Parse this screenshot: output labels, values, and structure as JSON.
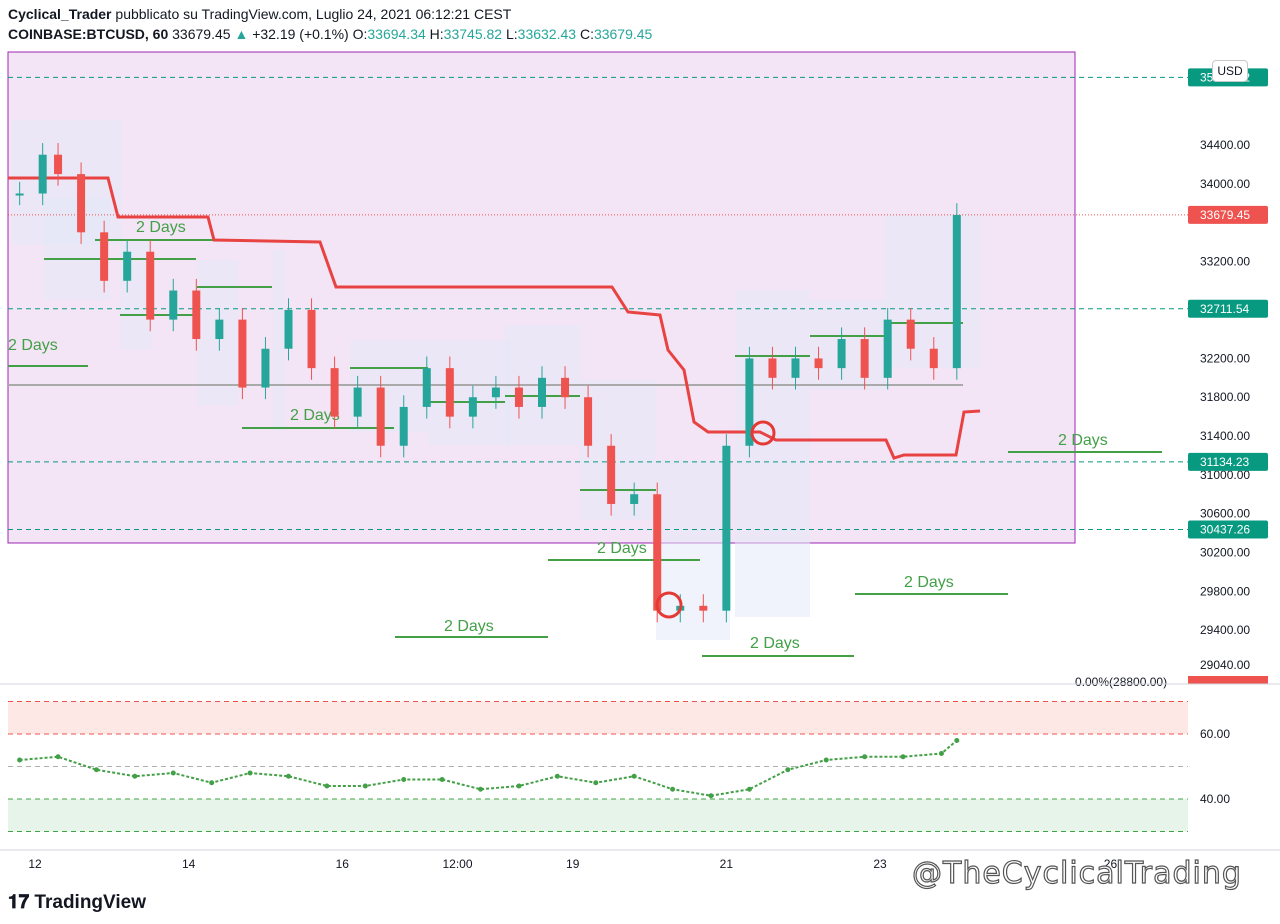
{
  "header": {
    "author": "Cyclical_Trader",
    "published": "pubblicato su TradingView.com, Luglio 24, 2021 06:12:21 CEST",
    "symbol": "COINBASE:BTCUSD, 60",
    "last": "33679.45",
    "change_arrow": "▲",
    "change": "+32.19 (+0.1%)",
    "o_label": "O:",
    "o": "33694.34",
    "h_label": "H:",
    "h": "33745.82",
    "l_label": "L:",
    "l": "33632.43",
    "c_label": "C:",
    "c": "33679.45"
  },
  "currency_button": "USD",
  "footer": {
    "logo": "TradingView",
    "watermark": "@TheCyclicalTrading"
  },
  "colors": {
    "up": "#26a69a",
    "down": "#ef5350",
    "red_line": "#e84342",
    "green_level": "#43a047",
    "zone_fill": "#f3e5f5",
    "zone_border": "#9c27b0",
    "rsi": "#43a047"
  },
  "chart_data": [
    {
      "type": "line",
      "title": "",
      "currency": "USD",
      "y_ticks": [
        "34400.00",
        "34000.00",
        "33200.00",
        "32200.00",
        "31800.00",
        "31400.00",
        "31000.00",
        "30600.00",
        "30200.00",
        "29800.00",
        "29400.00",
        "29040.00"
      ],
      "x_ticks": [
        "12",
        "14",
        "16",
        "12:00",
        "19",
        "21",
        "23",
        "26"
      ],
      "ylim": [
        29040,
        34750
      ],
      "price_labels": [
        {
          "value": 35097.12,
          "text": "35097.12",
          "color": "#089981"
        },
        {
          "value": 33679.45,
          "text": "33679.45",
          "color": "#ef5350"
        },
        {
          "value": 32711.54,
          "text": "32711.54",
          "color": "#089981"
        },
        {
          "value": 31134.23,
          "text": "31134.23",
          "color": "#089981"
        },
        {
          "value": 30437.26,
          "text": "30437.26",
          "color": "#089981"
        }
      ],
      "fib_label": "0.00%(28800.00)",
      "level_label": "2 Days",
      "close_series_x_day": [
        11.8,
        12.1,
        12.3,
        12.6,
        12.9,
        13.2,
        13.5,
        13.8,
        14.1,
        14.4,
        14.7,
        15.0,
        15.3,
        15.6,
        15.9,
        16.2,
        16.5,
        16.8,
        17.1,
        17.4,
        17.7,
        18.0,
        18.3,
        18.6,
        18.9,
        19.2,
        19.5,
        19.8,
        20.1,
        20.4,
        20.7,
        21.0,
        21.3,
        21.6,
        21.9,
        22.2,
        22.5,
        22.8,
        23.1,
        23.4,
        23.7,
        24.0
      ],
      "close_series_y": [
        33900,
        34300,
        34100,
        33500,
        33000,
        33300,
        32600,
        32900,
        32400,
        32600,
        31900,
        32300,
        32700,
        32100,
        31600,
        31900,
        31300,
        31700,
        32100,
        31600,
        31800,
        31900,
        31700,
        32000,
        31800,
        31300,
        30700,
        30800,
        29600,
        29650,
        29600,
        31300,
        32200,
        32000,
        32200,
        32100,
        32400,
        32000,
        32600,
        32300,
        32100,
        33679
      ]
    },
    {
      "type": "line",
      "title": "",
      "y_ticks": [
        "60.00",
        "40.00"
      ],
      "ylim": [
        28,
        72
      ],
      "bands": {
        "overbought": 70,
        "upper": 60,
        "lower": 40,
        "oversold": 30
      },
      "rsi_x_day": [
        11.8,
        12.3,
        12.8,
        13.3,
        13.8,
        14.3,
        14.8,
        15.3,
        15.8,
        16.3,
        16.8,
        17.3,
        17.8,
        18.3,
        18.8,
        19.3,
        19.8,
        20.3,
        20.8,
        21.3,
        21.8,
        22.3,
        22.8,
        23.3,
        23.8,
        24.0
      ],
      "rsi_y": [
        52,
        53,
        49,
        47,
        48,
        45,
        48,
        47,
        44,
        44,
        46,
        46,
        43,
        44,
        47,
        45,
        47,
        43,
        41,
        43,
        49,
        52,
        53,
        53,
        54,
        58
      ]
    }
  ]
}
